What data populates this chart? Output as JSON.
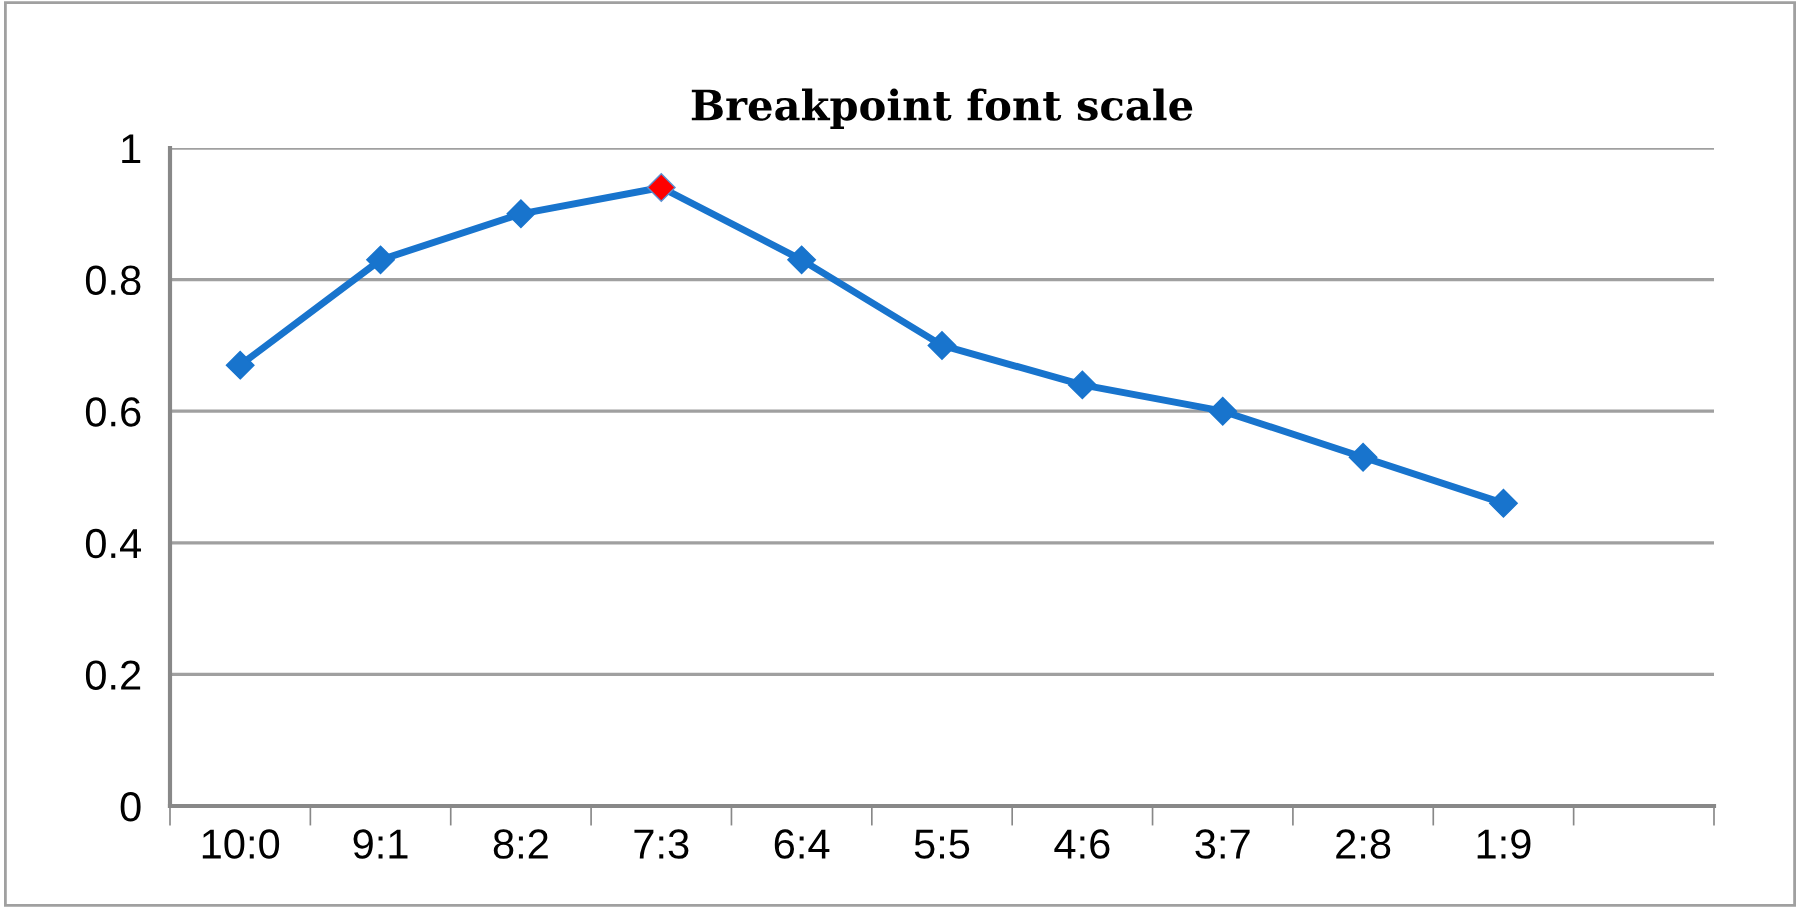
{
  "chart_data": {
    "type": "line",
    "title": "Breakpoint font scale",
    "categories": [
      "10:0",
      "9:1",
      "8:2",
      "7:3",
      "6:4",
      "5:5",
      "4:6",
      "3:7",
      "2:8",
      "1:9",
      null
    ],
    "series": [
      {
        "color": "#1874cd",
        "values": [
          0.67,
          0.83,
          0.9,
          0.94,
          0.83,
          0.7,
          0.64,
          0.6,
          0.53,
          0.46,
          null
        ],
        "colors": [
          "#1874cd",
          "#1874cd",
          "#1874cd",
          "#ff0000",
          "#1874cd",
          "#1874cd",
          "#1874cd",
          "#1874cd",
          "#1874cd",
          "#1874cd",
          "#1874cd"
        ]
      }
    ],
    "ylim": [
      0,
      1
    ],
    "yticks": [
      0,
      0.2,
      0.4,
      0.6,
      0.8,
      1
    ],
    "grid": "y",
    "legend": false,
    "marker": "diamond",
    "line_style": "solid"
  }
}
